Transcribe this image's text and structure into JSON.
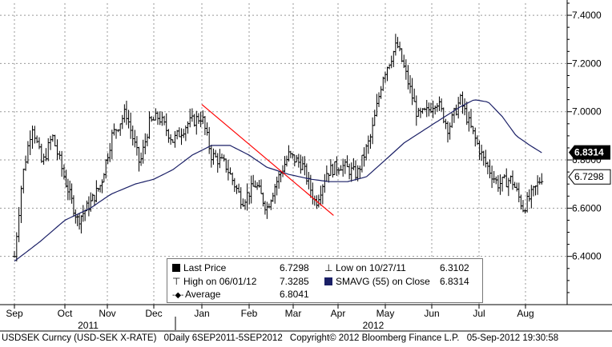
{
  "chart_data": {
    "type": "candlestick",
    "title": "",
    "ylim": [
      6.2,
      7.45
    ],
    "yticks": [
      6.4,
      6.6,
      6.8,
      7.0,
      7.2,
      7.4
    ],
    "ytick_labels": [
      "6.4000",
      "6.6000",
      "6.8000",
      "7.0000",
      "7.2000",
      "7.4000"
    ],
    "months": [
      "Sep",
      "Oct",
      "Nov",
      "Dec",
      "Jan",
      "Feb",
      "Mar",
      "Apr",
      "May",
      "Jun",
      "Jul",
      "Aug"
    ],
    "years": [
      "2011",
      "2012"
    ],
    "last_price": 6.7298,
    "last_price_label": "6.7298",
    "sma_last": 6.8314,
    "sma_last_label": "6.8314",
    "close_anchors": [
      {
        "t": 0.0,
        "v": 6.4
      },
      {
        "t": 0.15,
        "v": 6.72
      },
      {
        "t": 0.35,
        "v": 6.95
      },
      {
        "t": 0.55,
        "v": 6.78
      },
      {
        "t": 0.75,
        "v": 6.9
      },
      {
        "t": 1.0,
        "v": 6.72
      },
      {
        "t": 1.3,
        "v": 6.55
      },
      {
        "t": 1.6,
        "v": 6.62
      },
      {
        "t": 1.85,
        "v": 6.7
      },
      {
        "t": 2.1,
        "v": 6.9
      },
      {
        "t": 2.4,
        "v": 7.0
      },
      {
        "t": 2.7,
        "v": 6.78
      },
      {
        "t": 2.9,
        "v": 6.95
      },
      {
        "t": 3.1,
        "v": 6.98
      },
      {
        "t": 3.4,
        "v": 6.88
      },
      {
        "t": 3.7,
        "v": 6.95
      },
      {
        "t": 4.0,
        "v": 6.98
      },
      {
        "t": 4.2,
        "v": 6.82
      },
      {
        "t": 4.5,
        "v": 6.78
      },
      {
        "t": 4.85,
        "v": 6.63
      },
      {
        "t": 5.15,
        "v": 6.7
      },
      {
        "t": 5.4,
        "v": 6.6
      },
      {
        "t": 5.6,
        "v": 6.7
      },
      {
        "t": 5.9,
        "v": 6.82
      },
      {
        "t": 6.2,
        "v": 6.78
      },
      {
        "t": 6.5,
        "v": 6.62
      },
      {
        "t": 6.75,
        "v": 6.75
      },
      {
        "t": 7.05,
        "v": 6.78
      },
      {
        "t": 7.4,
        "v": 6.74
      },
      {
        "t": 7.7,
        "v": 6.9
      },
      {
        "t": 7.95,
        "v": 7.15
      },
      {
        "t": 8.25,
        "v": 7.28
      },
      {
        "t": 8.45,
        "v": 7.15
      },
      {
        "t": 8.7,
        "v": 6.98
      },
      {
        "t": 8.9,
        "v": 7.0
      },
      {
        "t": 9.1,
        "v": 7.05
      },
      {
        "t": 9.35,
        "v": 6.93
      },
      {
        "t": 9.6,
        "v": 7.05
      },
      {
        "t": 9.85,
        "v": 6.92
      },
      {
        "t": 10.1,
        "v": 6.8
      },
      {
        "t": 10.4,
        "v": 6.7
      },
      {
        "t": 10.7,
        "v": 6.72
      },
      {
        "t": 10.95,
        "v": 6.6
      },
      {
        "t": 11.15,
        "v": 6.66
      },
      {
        "t": 11.35,
        "v": 6.73
      }
    ],
    "sma_anchors": [
      {
        "t": 0.0,
        "v": 6.38
      },
      {
        "t": 0.5,
        "v": 6.46
      },
      {
        "t": 1.0,
        "v": 6.55
      },
      {
        "t": 1.6,
        "v": 6.6
      },
      {
        "t": 2.1,
        "v": 6.66
      },
      {
        "t": 2.6,
        "v": 6.7
      },
      {
        "t": 3.0,
        "v": 6.72
      },
      {
        "t": 3.4,
        "v": 6.76
      },
      {
        "t": 3.8,
        "v": 6.82
      },
      {
        "t": 4.2,
        "v": 6.86
      },
      {
        "t": 4.6,
        "v": 6.86
      },
      {
        "t": 5.0,
        "v": 6.82
      },
      {
        "t": 5.4,
        "v": 6.77
      },
      {
        "t": 5.9,
        "v": 6.74
      },
      {
        "t": 6.4,
        "v": 6.72
      },
      {
        "t": 6.8,
        "v": 6.71
      },
      {
        "t": 7.2,
        "v": 6.71
      },
      {
        "t": 7.6,
        "v": 6.73
      },
      {
        "t": 8.0,
        "v": 6.8
      },
      {
        "t": 8.4,
        "v": 6.87
      },
      {
        "t": 8.8,
        "v": 6.92
      },
      {
        "t": 9.2,
        "v": 6.97
      },
      {
        "t": 9.6,
        "v": 7.02
      },
      {
        "t": 9.9,
        "v": 7.05
      },
      {
        "t": 10.2,
        "v": 7.04
      },
      {
        "t": 10.5,
        "v": 6.98
      },
      {
        "t": 10.8,
        "v": 6.9
      },
      {
        "t": 11.1,
        "v": 6.86
      },
      {
        "t": 11.35,
        "v": 6.83
      }
    ],
    "trendline": [
      {
        "t": 4.0,
        "v": 7.03
      },
      {
        "t": 6.9,
        "v": 6.57
      }
    ]
  },
  "legend": {
    "last_price_label": "Last Price",
    "last_price_value": "6.7298",
    "high_label": "High on 06/01/12",
    "high_value": "7.3285",
    "average_label": "Average",
    "average_value": "6.8041",
    "low_label": "Low on 10/27/11",
    "low_value": "6.3102",
    "sma_label": "SMAVG (55) on Close",
    "sma_value": "6.8314"
  },
  "footer": {
    "ticker": "USDSEK Curncy (USD-SEK X-RATE)",
    "period": "0Daily 6SEP2011-5SEP2012",
    "copyright": "Copyright© 2012 Bloomberg Finance L.P.",
    "timestamp": "05-Sep-2012 19:30:58"
  },
  "colors": {
    "price": "#000000",
    "sma": "#1a1f66",
    "trendline": "#ff0000",
    "sma_tag": "#000000",
    "last_tag": "#000000"
  }
}
